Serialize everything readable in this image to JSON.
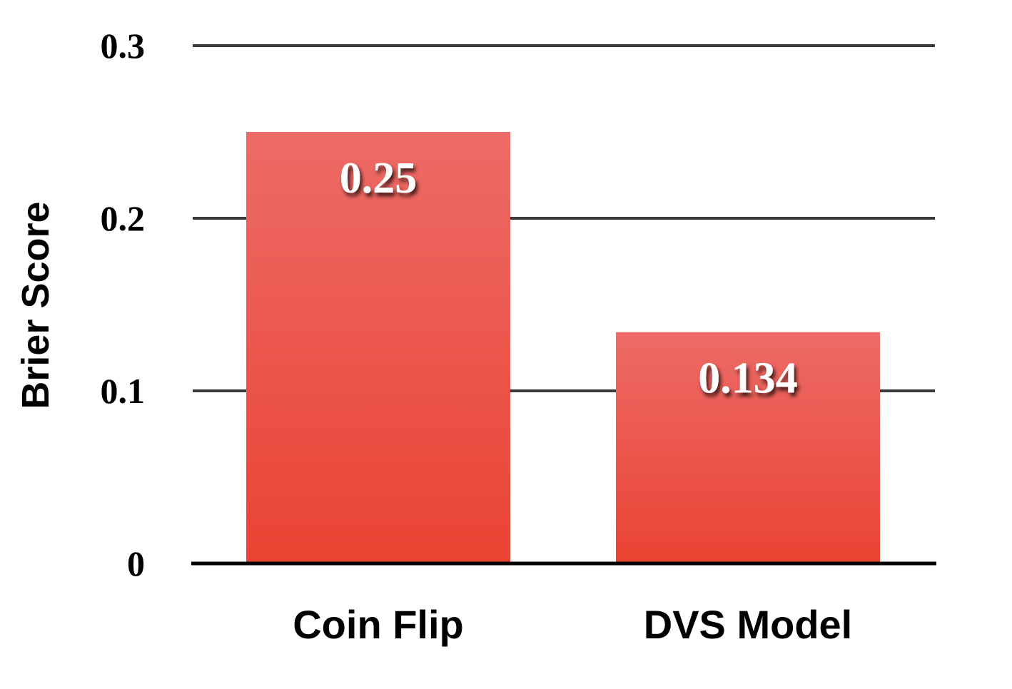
{
  "chart_data": {
    "type": "bar",
    "title": "",
    "xlabel": "",
    "ylabel": "Brier Score",
    "categories": [
      "Coin Flip",
      "DVS Model"
    ],
    "values": [
      0.25,
      0.134
    ],
    "value_labels": [
      "0.25",
      "0.134"
    ],
    "ylim": [
      0,
      0.3
    ],
    "y_ticks": [
      0,
      0.1,
      0.2,
      0.3
    ],
    "y_tick_labels": [
      "0",
      "0.1",
      "0.2",
      "0.3"
    ],
    "grid": true,
    "legend": "none",
    "colors": {
      "bar_top": "#ED6B67",
      "bar_bottom": "#EA4333",
      "gridline": "#3a3a3a",
      "baseline": "#000000"
    }
  }
}
